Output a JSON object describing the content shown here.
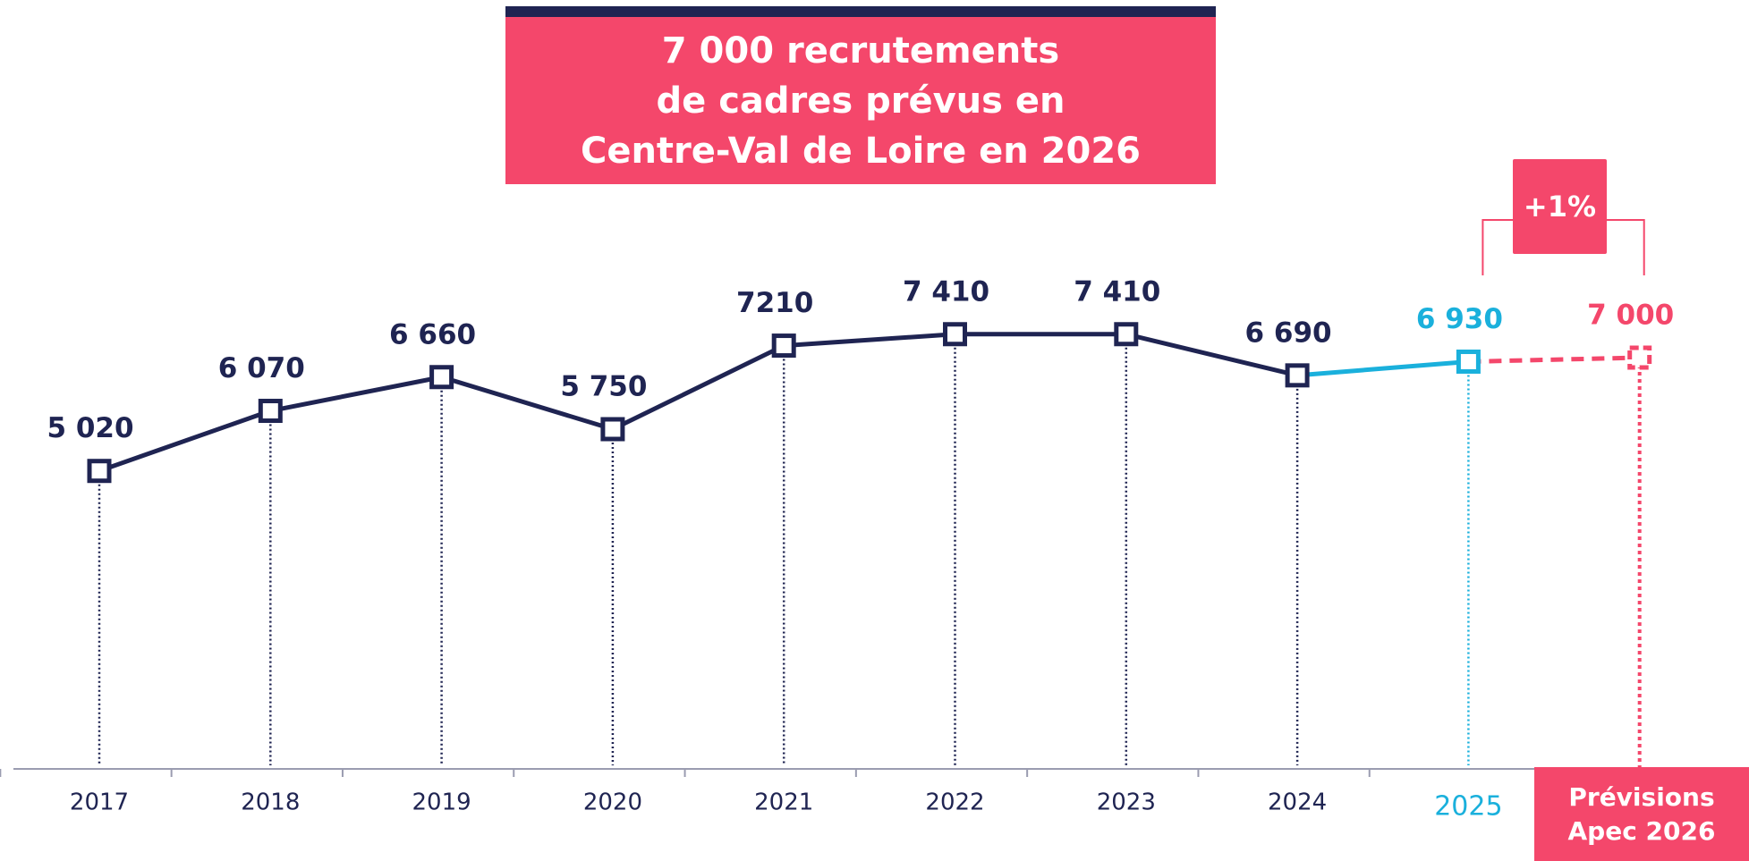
{
  "chart_data": {
    "type": "line",
    "title": [
      "7 000 recrutements",
      "de cadres prévus en",
      "Centre-Val de Loire en 2026"
    ],
    "categories": [
      "2017",
      "2018",
      "2019",
      "2020",
      "2021",
      "2022",
      "2023",
      "2024",
      "2025",
      "Prévisions Apec 2026"
    ],
    "values": [
      5020,
      6070,
      6660,
      5750,
      7210,
      7410,
      7410,
      6690,
      6930,
      7000
    ],
    "value_labels": [
      "5 020",
      "6 070",
      "6 660",
      "5 750",
      "7210",
      "7 410",
      "7 410",
      "6 690",
      "6 930",
      "7 000"
    ],
    "colors": [
      "#1f2452",
      "#1f2452",
      "#1f2452",
      "#1f2452",
      "#1f2452",
      "#1f2452",
      "#1f2452",
      "#1f2452",
      "#1ab0dc",
      "#f4476b"
    ],
    "ylim": [
      0,
      13250
    ],
    "annotation": "+1%"
  }
}
